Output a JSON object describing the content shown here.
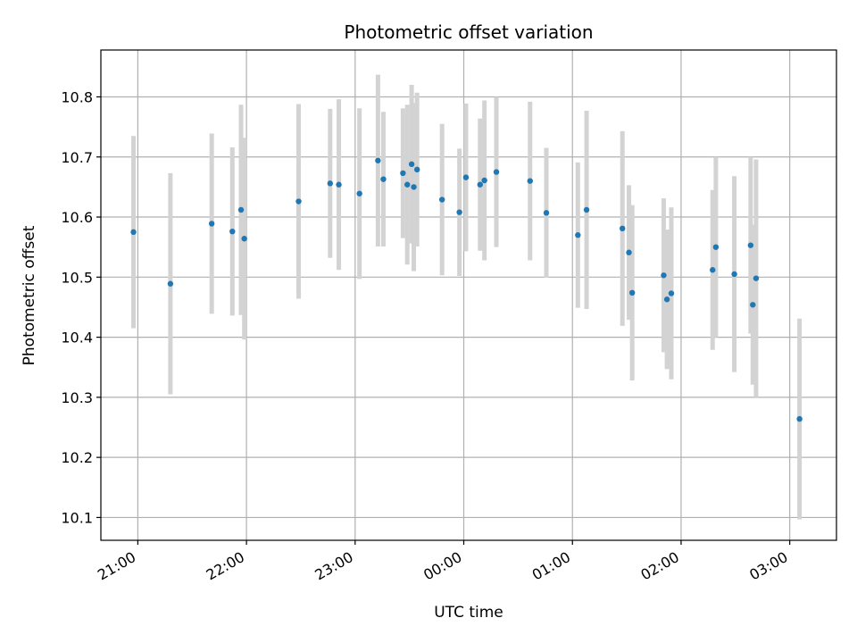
{
  "chart_data": {
    "type": "scatter",
    "title": "Photometric offset variation",
    "xlabel": "UTC time",
    "ylabel": "Photometric offset",
    "x_unit": "hours",
    "x_ticks": [
      {
        "value": 21,
        "label": "21:00"
      },
      {
        "value": 22,
        "label": "22:00"
      },
      {
        "value": 23,
        "label": "23:00"
      },
      {
        "value": 24,
        "label": "00:00"
      },
      {
        "value": 25,
        "label": "01:00"
      },
      {
        "value": 26,
        "label": "02:00"
      },
      {
        "value": 27,
        "label": "03:00"
      }
    ],
    "y_ticks": [
      10.1,
      10.2,
      10.3,
      10.4,
      10.5,
      10.6,
      10.7,
      10.8
    ],
    "xlim": [
      20.66,
      27.43
    ],
    "ylim": [
      10.062,
      10.878
    ],
    "grid": true,
    "colors": {
      "points": "#1f77b4",
      "errorbars": "#d3d3d3",
      "grid": "#b0b0b0"
    },
    "points": [
      {
        "x": 20.96,
        "y": 10.575,
        "err": 0.16
      },
      {
        "x": 21.3,
        "y": 10.489,
        "err": 0.184
      },
      {
        "x": 21.68,
        "y": 10.589,
        "err": 0.15
      },
      {
        "x": 21.87,
        "y": 10.576,
        "err": 0.14
      },
      {
        "x": 21.95,
        "y": 10.612,
        "err": 0.175
      },
      {
        "x": 21.98,
        "y": 10.564,
        "err": 0.168
      },
      {
        "x": 22.48,
        "y": 10.626,
        "err": 0.162
      },
      {
        "x": 22.77,
        "y": 10.656,
        "err": 0.124
      },
      {
        "x": 22.85,
        "y": 10.654,
        "err": 0.142
      },
      {
        "x": 23.04,
        "y": 10.639,
        "err": 0.142
      },
      {
        "x": 23.21,
        "y": 10.694,
        "err": 0.143
      },
      {
        "x": 23.26,
        "y": 10.663,
        "err": 0.112
      },
      {
        "x": 23.44,
        "y": 10.673,
        "err": 0.108
      },
      {
        "x": 23.48,
        "y": 10.654,
        "err": 0.133
      },
      {
        "x": 23.52,
        "y": 10.688,
        "err": 0.132
      },
      {
        "x": 23.54,
        "y": 10.65,
        "err": 0.14
      },
      {
        "x": 23.57,
        "y": 10.679,
        "err": 0.128
      },
      {
        "x": 23.8,
        "y": 10.629,
        "err": 0.126
      },
      {
        "x": 23.96,
        "y": 10.608,
        "err": 0.106
      },
      {
        "x": 24.02,
        "y": 10.666,
        "err": 0.123
      },
      {
        "x": 24.15,
        "y": 10.654,
        "err": 0.11
      },
      {
        "x": 24.19,
        "y": 10.661,
        "err": 0.133
      },
      {
        "x": 24.3,
        "y": 10.675,
        "err": 0.125
      },
      {
        "x": 24.61,
        "y": 10.66,
        "err": 0.132
      },
      {
        "x": 24.76,
        "y": 10.607,
        "err": 0.108
      },
      {
        "x": 25.05,
        "y": 10.57,
        "err": 0.121
      },
      {
        "x": 25.13,
        "y": 10.612,
        "err": 0.165
      },
      {
        "x": 25.46,
        "y": 10.581,
        "err": 0.162
      },
      {
        "x": 25.52,
        "y": 10.541,
        "err": 0.112
      },
      {
        "x": 25.55,
        "y": 10.474,
        "err": 0.146
      },
      {
        "x": 25.84,
        "y": 10.503,
        "err": 0.128
      },
      {
        "x": 25.87,
        "y": 10.463,
        "err": 0.116
      },
      {
        "x": 25.91,
        "y": 10.473,
        "err": 0.143
      },
      {
        "x": 26.29,
        "y": 10.512,
        "err": 0.133
      },
      {
        "x": 26.32,
        "y": 10.55,
        "err": 0.15
      },
      {
        "x": 26.49,
        "y": 10.505,
        "err": 0.163
      },
      {
        "x": 26.64,
        "y": 10.553,
        "err": 0.147
      },
      {
        "x": 26.66,
        "y": 10.454,
        "err": 0.133
      },
      {
        "x": 26.69,
        "y": 10.498,
        "err": 0.198
      },
      {
        "x": 27.09,
        "y": 10.264,
        "err": 0.167
      }
    ]
  }
}
